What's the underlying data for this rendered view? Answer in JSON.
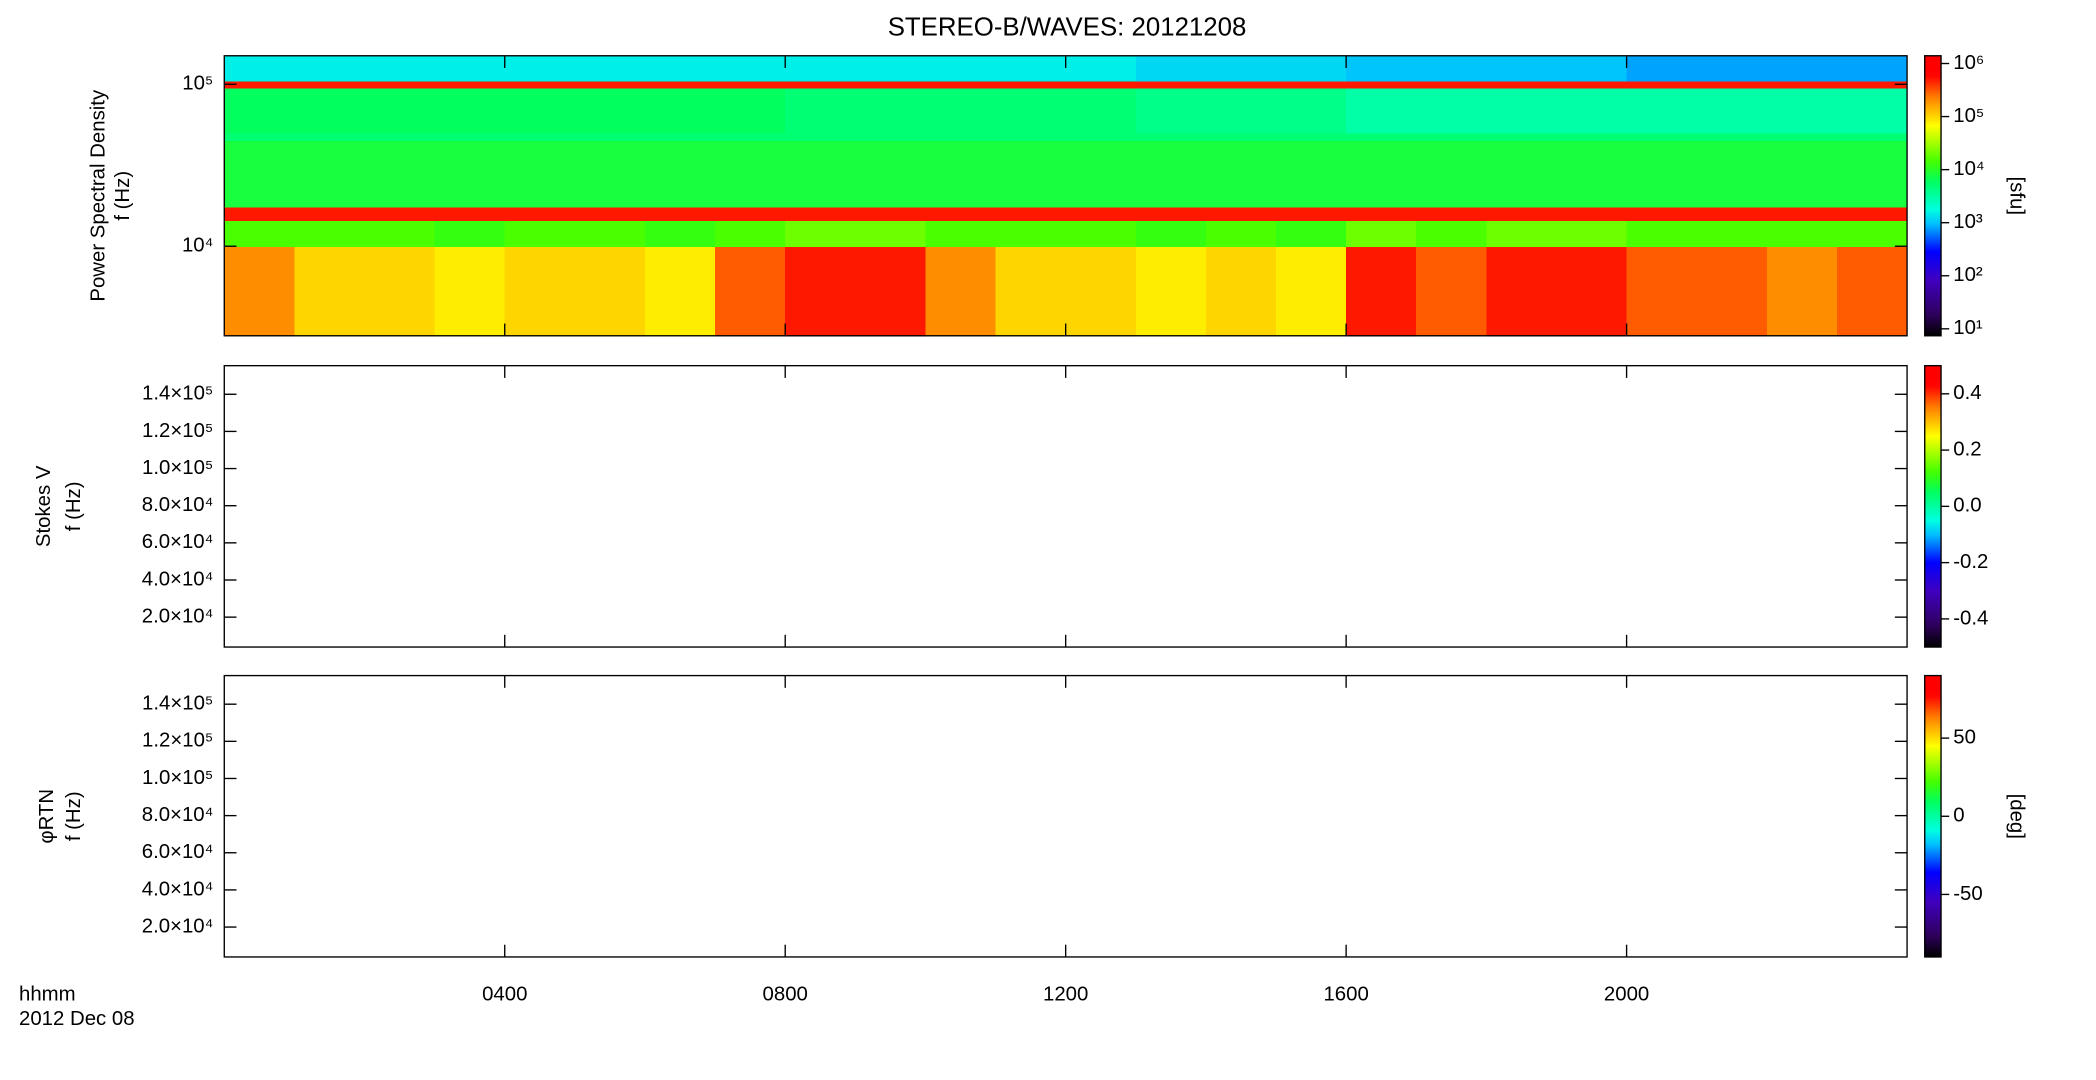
{
  "title": "STEREO-B/WAVES: 20121208",
  "time_axis": {
    "label": [
      "hhmm",
      "2012 Dec 08"
    ],
    "xlim": [
      0,
      24
    ],
    "xticks": [
      {
        "value": 4,
        "label": "0400"
      },
      {
        "value": 8,
        "label": "0800"
      },
      {
        "value": 12,
        "label": "1200"
      },
      {
        "value": 16,
        "label": "1600"
      },
      {
        "value": 20,
        "label": "2000"
      }
    ]
  },
  "chart_data": [
    {
      "type": "heatmap",
      "ylabel": [
        "Power Spectral Density",
        "f (Hz)"
      ],
      "log_y": true,
      "ylim": [
        2800,
        150000
      ],
      "yticks": [
        {
          "value": 10000,
          "label": "10⁴"
        },
        {
          "value": 100000,
          "label": "10⁵"
        }
      ],
      "x": [
        0,
        1,
        2,
        3,
        4,
        5,
        6,
        7,
        8,
        9,
        10,
        11,
        12,
        13,
        14,
        15,
        16,
        17,
        18,
        19,
        20,
        21,
        22,
        23,
        24
      ],
      "y": [
        2800,
        10000,
        14500,
        17500,
        45000,
        50000,
        95000,
        105000,
        150000
      ],
      "values": [
        [
          200000,
          100000,
          100000,
          80000,
          100000,
          100000,
          80000,
          300000,
          500000,
          500000,
          200000,
          100000,
          100000,
          80000,
          100000,
          80000,
          500000,
          300000,
          500000,
          500000,
          300000,
          300000,
          200000,
          300000
        ],
        [
          15000,
          15000,
          15000,
          12000,
          15000,
          15000,
          12000,
          15000,
          20000,
          20000,
          15000,
          15000,
          15000,
          12000,
          15000,
          12000,
          20000,
          15000,
          20000,
          20000,
          15000,
          15000,
          15000,
          15000
        ],
        [
          500000,
          500000,
          500000,
          500000,
          500000,
          500000,
          500000,
          500000,
          500000,
          500000,
          500000,
          500000,
          500000,
          500000,
          500000,
          500000,
          500000,
          500000,
          500000,
          500000,
          500000,
          500000,
          500000,
          500000
        ],
        [
          8000,
          8000,
          8000,
          8000,
          8000,
          8000,
          8000,
          8000,
          8000,
          8000,
          8000,
          8000,
          8000,
          8000,
          8000,
          8000,
          8000,
          8000,
          8000,
          8000,
          8000,
          8000,
          8000,
          8000
        ],
        [
          5000,
          5000,
          5000,
          5000,
          5000,
          5000,
          5000,
          5000,
          5000,
          5000,
          5000,
          5000,
          5000,
          5000,
          5000,
          5000,
          5000,
          5000,
          5000,
          5000,
          5000,
          5000,
          5000,
          5000
        ],
        [
          6000,
          6000,
          6000,
          6000,
          6000,
          6000,
          6000,
          6000,
          5000,
          5000,
          5000,
          5000,
          5000,
          4000,
          4000,
          4000,
          3000,
          3000,
          3000,
          3000,
          3000,
          3000,
          3000,
          3000
        ],
        [
          500000,
          500000,
          500000,
          500000,
          500000,
          500000,
          500000,
          500000,
          500000,
          500000,
          500000,
          500000,
          500000,
          500000,
          500000,
          500000,
          500000,
          500000,
          500000,
          500000,
          500000,
          500000,
          500000,
          500000
        ],
        [
          1500,
          1500,
          1500,
          1500,
          1500,
          1500,
          1500,
          1500,
          1500,
          1500,
          1500,
          1500,
          1500,
          1200,
          1200,
          1200,
          1000,
          1000,
          1000,
          1000,
          800,
          800,
          800,
          800
        ]
      ],
      "colorbar": {
        "label": "[sfu]",
        "log": true,
        "clim": [
          7.4,
          1400000
        ],
        "ticks": [
          {
            "value": 10,
            "label": "10¹"
          },
          {
            "value": 100,
            "label": "10²"
          },
          {
            "value": 1000,
            "label": "10³"
          },
          {
            "value": 10000,
            "label": "10⁴"
          },
          {
            "value": 100000,
            "label": "10⁵"
          },
          {
            "value": 1000000,
            "label": "10⁶"
          }
        ]
      }
    },
    {
      "type": "heatmap",
      "ylabel": [
        "Stokes V",
        "f (Hz)"
      ],
      "log_y": false,
      "ylim": [
        3900,
        155400
      ],
      "yticks": [
        {
          "value": 20000,
          "label": "2.0×10⁴"
        },
        {
          "value": 40000,
          "label": "4.0×10⁴"
        },
        {
          "value": 60000,
          "label": "6.0×10⁴"
        },
        {
          "value": 80000,
          "label": "8.0×10⁴"
        },
        {
          "value": 100000,
          "label": "1.0×10⁵"
        },
        {
          "value": 120000,
          "label": "1.2×10⁵"
        },
        {
          "value": 140000,
          "label": "1.4×10⁵"
        }
      ],
      "colorbar": {
        "log": false,
        "clim": [
          -0.5,
          0.5
        ],
        "ticks": [
          -0.4,
          -0.2,
          {
            "value": 0,
            "label": "0.0"
          },
          0.2,
          0.4
        ]
      }
    },
    {
      "type": "heatmap",
      "ylabel": [
        "φRTN",
        "f (Hz)"
      ],
      "log_y": false,
      "ylim": [
        3900,
        155400
      ],
      "yticks": [
        {
          "value": 20000,
          "label": "2.0×10⁴"
        },
        {
          "value": 40000,
          "label": "4.0×10⁴"
        },
        {
          "value": 60000,
          "label": "6.0×10⁴"
        },
        {
          "value": 80000,
          "label": "8.0×10⁴"
        },
        {
          "value": 100000,
          "label": "1.0×10⁵"
        },
        {
          "value": 120000,
          "label": "1.2×10⁵"
        },
        {
          "value": 140000,
          "label": "1.4×10⁵"
        }
      ],
      "colorbar": {
        "label": "[deg]",
        "log": false,
        "clim": [
          -90,
          90
        ],
        "ticks": [
          -50,
          0,
          50
        ]
      }
    }
  ]
}
